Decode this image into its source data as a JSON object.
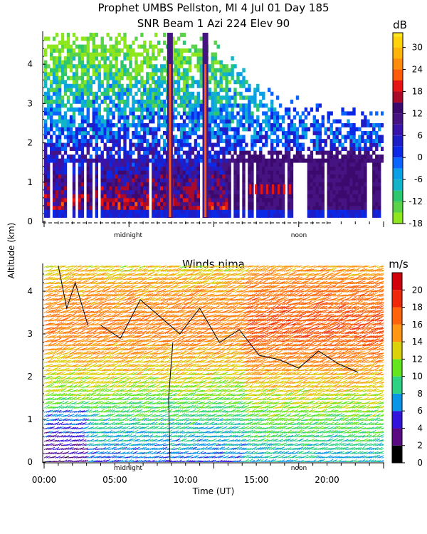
{
  "header": {
    "title_line1": "Prophet  UMBS Pellston, MI   4 Jul 01 Day 185",
    "title_line2": "SNR Beam 1 Azi 224 Elev 90"
  },
  "shared_axes": {
    "ylabel": "Altitude (km)",
    "xlabel": "Time (UT)",
    "midnight_marker": "midnight",
    "noon_marker": "noon"
  },
  "chart_data": [
    {
      "type": "heatmap",
      "name": "SNR",
      "title": "SNR Beam 1 Azi 224 Elev 90",
      "x_range_hours": [
        0,
        24
      ],
      "ylim": [
        0,
        4.8
      ],
      "yticks": [
        0,
        1,
        2,
        3,
        4
      ],
      "ytick_labels": [
        "0",
        "1",
        "2",
        "3",
        "4"
      ],
      "colorbar": {
        "unit": "dB",
        "ticks": [
          30,
          24,
          18,
          12,
          6,
          0,
          -6,
          -12,
          -18
        ],
        "tick_labels": [
          "30",
          "24",
          "18",
          "12",
          "6",
          "0",
          "-6",
          "-12",
          "-18"
        ],
        "levels": [
          -18,
          -15,
          -12,
          -9,
          -6,
          -3,
          0,
          3,
          6,
          9,
          12,
          15,
          18,
          21,
          24,
          27,
          30,
          33
        ],
        "colors": [
          "#8ee61e",
          "#5ad24a",
          "#2dc86e",
          "#12b4c8",
          "#0aa0e6",
          "#0a64ff",
          "#0a28e6",
          "#1e1ec8",
          "#3a14aa",
          "#461482",
          "#3c0a6e",
          "#aa0a28",
          "#e61414",
          "#ff5a0a",
          "#ff8c0a",
          "#ffb40a",
          "#ffd20a",
          "#ffe61e"
        ]
      },
      "approx_echo_top_km": [
        {
          "hour": 0,
          "value": 4.7
        },
        {
          "hour": 4,
          "value": 4.7
        },
        {
          "hour": 8,
          "value": 4.6
        },
        {
          "hour": 12,
          "value": 4.3
        },
        {
          "hour": 16,
          "value": 3.0
        },
        {
          "hour": 20,
          "value": 2.6
        },
        {
          "hour": 24,
          "value": 2.6
        }
      ],
      "strong_echo_columns_hours": [
        8.9,
        11.4
      ],
      "strong_layer": {
        "start_hour": 14.5,
        "end_hour": 17.5,
        "altitude_km": 0.8
      }
    },
    {
      "type": "wind_barbs",
      "name": "Winds",
      "title": "Winds nima",
      "xlim_hours": [
        0,
        24
      ],
      "xticks": [
        0,
        5,
        10,
        15,
        20
      ],
      "xtick_labels": [
        "00:00",
        "05:00",
        "10:00",
        "15:00",
        "20:00"
      ],
      "ylim": [
        0,
        4.6
      ],
      "yticks": [
        0,
        1,
        2,
        3,
        4
      ],
      "ytick_labels": [
        "0",
        "1",
        "2",
        "3",
        "4"
      ],
      "colorbar": {
        "unit": "m/s",
        "ticks": [
          20,
          18,
          16,
          14,
          12,
          10,
          8,
          6,
          4,
          2,
          0
        ],
        "tick_labels": [
          "20",
          "18",
          "16",
          "14",
          "12",
          "10",
          "8",
          "6",
          "4",
          "2",
          "0"
        ],
        "colors": [
          "#000000",
          "#5a0a82",
          "#3214dc",
          "#0a96e6",
          "#2dd282",
          "#64e61e",
          "#dcd20a",
          "#ff9614",
          "#ff640a",
          "#f0280a",
          "#d2000a"
        ]
      },
      "speed_by_altitude_km": [
        {
          "altitude": 0.0,
          "speed_ms": 6
        },
        {
          "altitude": 1.0,
          "speed_ms": 9
        },
        {
          "altitude": 2.0,
          "speed_ms": 13
        },
        {
          "altitude": 3.0,
          "speed_ms": 16
        },
        {
          "altitude": 4.0,
          "speed_ms": 15
        },
        {
          "altitude": 4.6,
          "speed_ms": 13
        }
      ]
    }
  ]
}
